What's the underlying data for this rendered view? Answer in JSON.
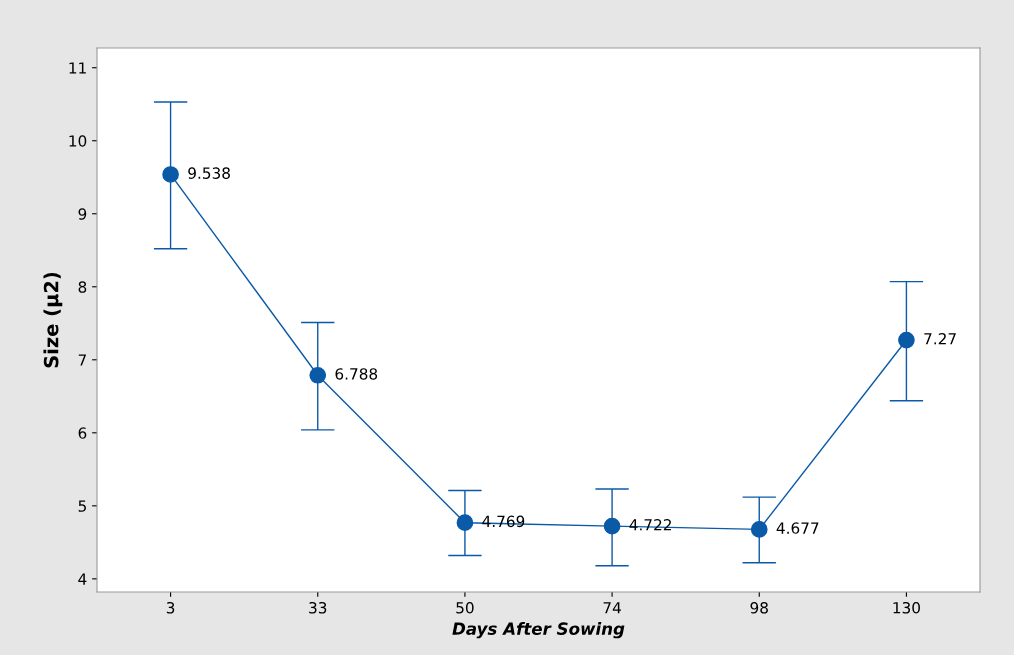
{
  "chart_data": {
    "type": "line",
    "xlabel": "Days After Sowing",
    "ylabel": "Size (µ2)",
    "categories": [
      "3",
      "33",
      "50",
      "74",
      "98",
      "130"
    ],
    "series": [
      {
        "color": "#0a5aa8",
        "values": [
          9.538,
          6.788,
          4.769,
          4.722,
          4.677,
          7.27
        ],
        "errors": [
          [
            8.52,
            10.53
          ],
          [
            6.04,
            7.51
          ],
          [
            4.32,
            5.21
          ],
          [
            4.18,
            5.23
          ],
          [
            4.22,
            5.12
          ],
          [
            6.44,
            8.07
          ]
        ]
      }
    ],
    "ylim": [
      3.82,
      11.27
    ],
    "yticks": [
      4,
      5,
      6,
      7,
      8,
      9,
      10,
      11
    ],
    "data_labels": true,
    "marker": "circle",
    "line_style": "solid",
    "grid": false,
    "legend": false
  }
}
